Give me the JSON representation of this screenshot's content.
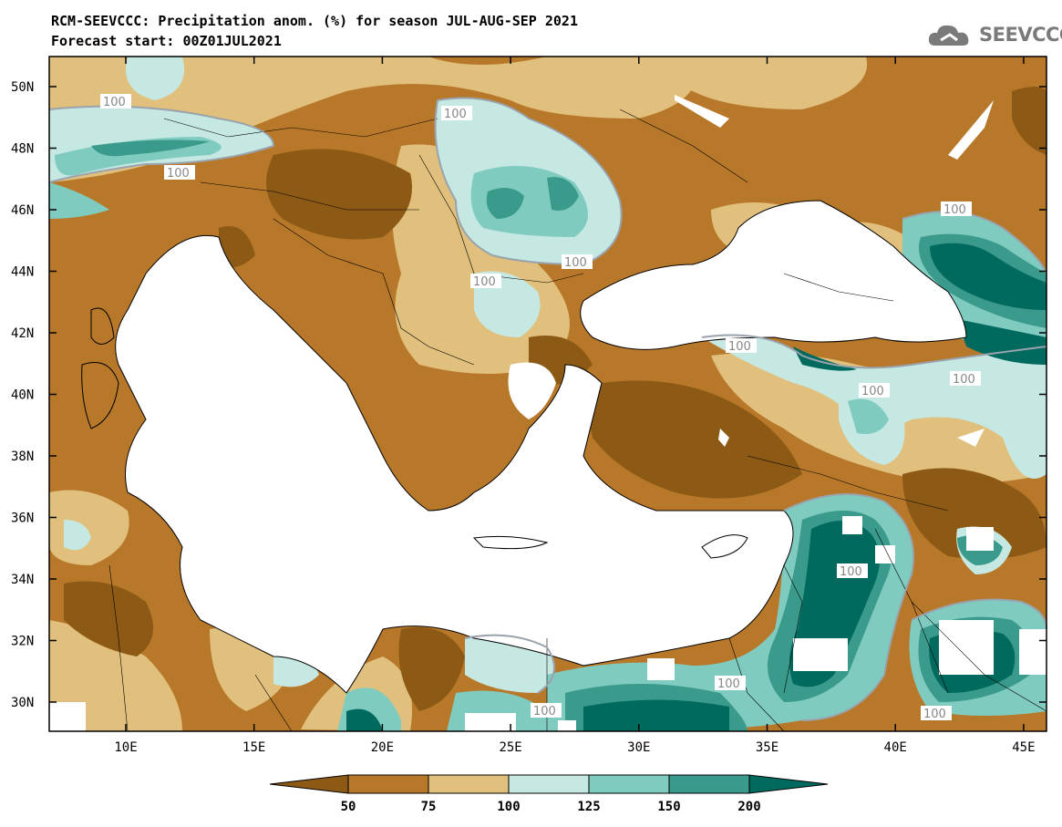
{
  "title_line1": "RCM-SEEVCCC: Precipitation anom. (%) for season JUL-AUG-SEP 2021",
  "title_line2": "Forecast start: 00Z01JUL2021",
  "logo_text": "SEEVCCC",
  "logo_icon": "cloud-icon",
  "lat_labels": [
    "50N",
    "48N",
    "46N",
    "44N",
    "42N",
    "40N",
    "38N",
    "36N",
    "34N",
    "32N",
    "30N"
  ],
  "lon_labels": [
    "10E",
    "15E",
    "20E",
    "25E",
    "30E",
    "35E",
    "40E",
    "45E"
  ],
  "contour_label": "100",
  "colorbar": {
    "ticks": [
      "50",
      "75",
      "100",
      "125",
      "150",
      "200"
    ],
    "colors": [
      "#8c5a14",
      "#b8782a",
      "#e0c07c",
      "#c6e8e2",
      "#80cbbf",
      "#3a9a8c",
      "#006a5e"
    ]
  }
}
